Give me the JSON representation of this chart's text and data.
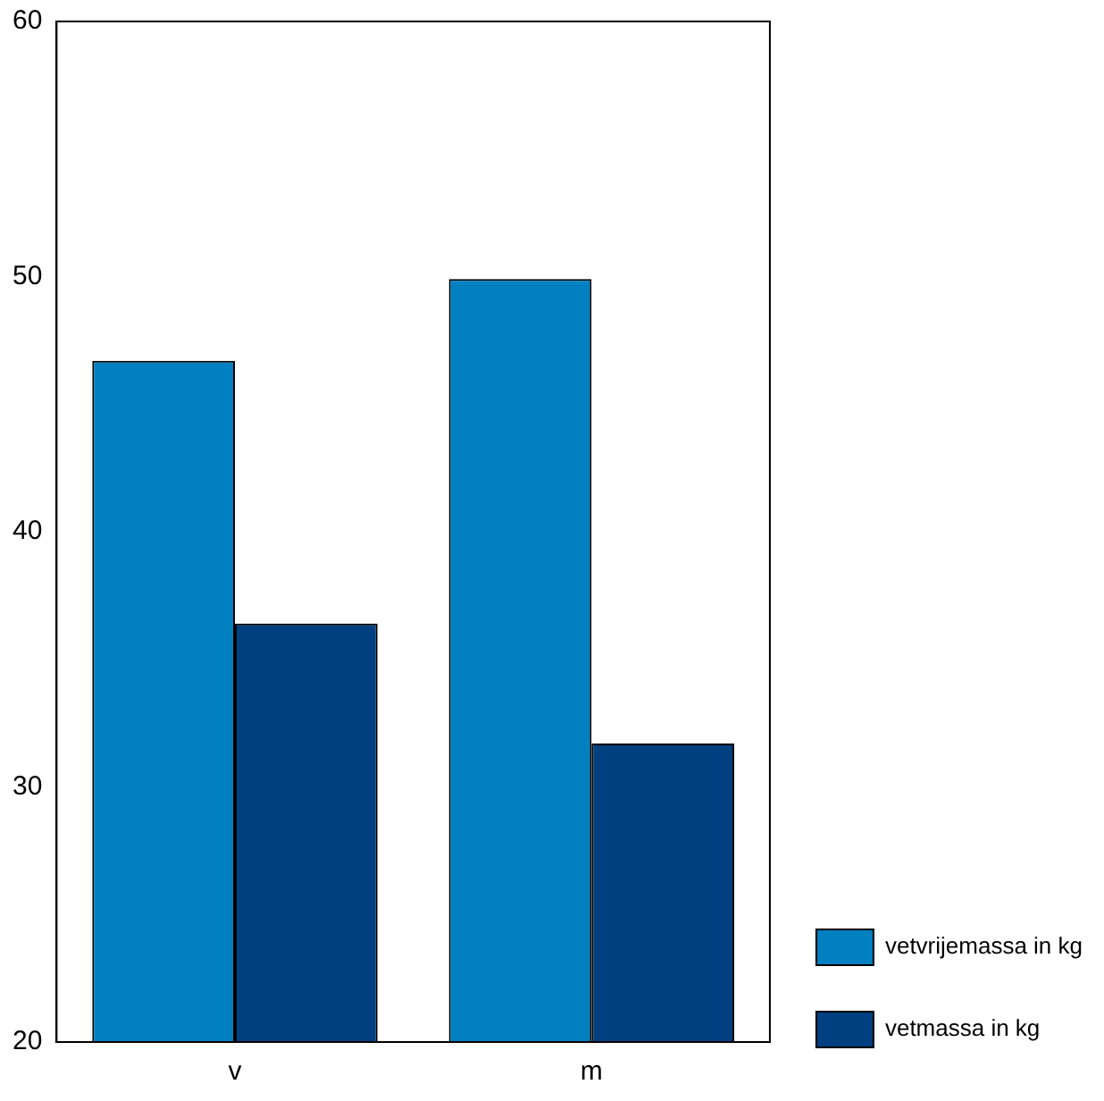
{
  "chart_data": {
    "type": "bar",
    "categories": [
      "v",
      "m"
    ],
    "series": [
      {
        "name": "vetvrijemassa in kg",
        "color": "#0080c0",
        "values": [
          46.7,
          49.9
        ]
      },
      {
        "name": "vetmassa in kg",
        "color": "#004080",
        "values": [
          36.4,
          31.7
        ]
      }
    ],
    "ylim": [
      20,
      60
    ],
    "yticks": [
      20,
      30,
      40,
      50,
      60
    ],
    "grid": false,
    "legend": "bottom right"
  }
}
